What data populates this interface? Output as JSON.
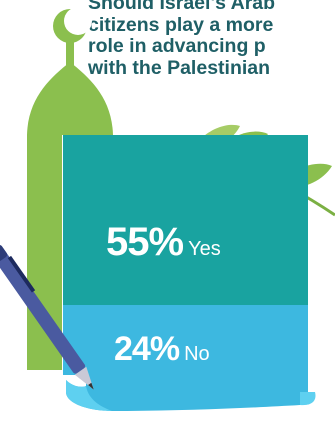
{
  "question": {
    "lines": [
      "Should Israel's Arab",
      "citizens play a more",
      "role in advancing p",
      "with the Palestinian"
    ]
  },
  "chart_data": {
    "type": "bar",
    "categories": [
      "Yes",
      "No"
    ],
    "values": [
      55,
      24
    ],
    "value_labels": [
      "55%",
      "24%"
    ],
    "colors": {
      "yes_block": "#19a3a0",
      "no_block": "#3db8e0",
      "banner_edge": "#5ed0f0",
      "dome": "#8bbf4e",
      "heading": "#1f5f66"
    }
  },
  "decor": {
    "icons": [
      "crescent-icon",
      "minaret-dome-icon",
      "olive-branch-icon",
      "pen-icon"
    ]
  }
}
